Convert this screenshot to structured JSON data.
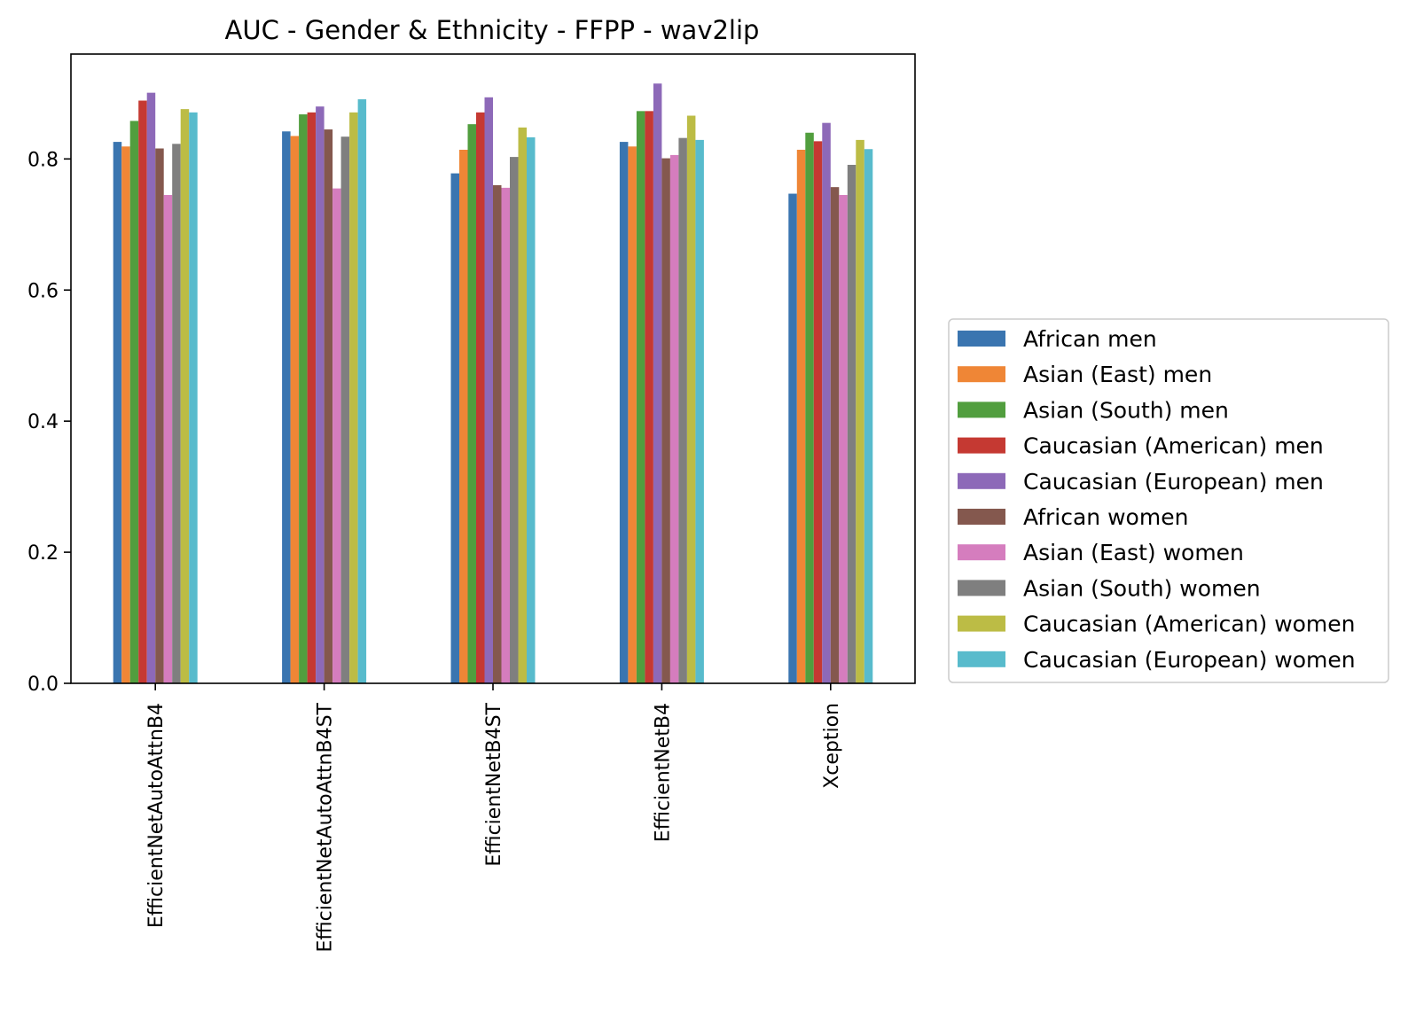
{
  "chart_data": {
    "type": "bar",
    "title": "AUC - Gender & Ethnicity - FFPP - wav2lip",
    "xlabel": "",
    "ylabel": "",
    "ylim": [
      0,
      0.96
    ],
    "yticks": [
      {
        "value": 0.0,
        "label": "0.0"
      },
      {
        "value": 0.2,
        "label": "0.2"
      },
      {
        "value": 0.4,
        "label": "0.4"
      },
      {
        "value": 0.6,
        "label": "0.6"
      },
      {
        "value": 0.8,
        "label": "0.8"
      }
    ],
    "grid": false,
    "legend_position": "right",
    "categories": [
      "EfficientNetAutoAttnB4",
      "EfficientNetAutoAttnB4ST",
      "EfficientNetB4ST",
      "EfficientNetB4",
      "Xception"
    ],
    "series": [
      {
        "name": "African men",
        "color": "#3a75b0",
        "values": [
          0.826,
          0.842,
          0.778,
          0.826,
          0.747
        ]
      },
      {
        "name": "Asian (East) men",
        "color": "#ef8636",
        "values": [
          0.819,
          0.835,
          0.814,
          0.819,
          0.814
        ]
      },
      {
        "name": "Asian (South) men",
        "color": "#519e3e",
        "values": [
          0.858,
          0.868,
          0.853,
          0.873,
          0.84
        ]
      },
      {
        "name": "Caucasian (American) men",
        "color": "#c53932",
        "values": [
          0.889,
          0.871,
          0.871,
          0.873,
          0.827
        ]
      },
      {
        "name": "Caucasian (European) men",
        "color": "#8d69b8",
        "values": [
          0.901,
          0.88,
          0.894,
          0.915,
          0.855
        ]
      },
      {
        "name": "African women",
        "color": "#84584e",
        "values": [
          0.816,
          0.845,
          0.76,
          0.801,
          0.757
        ]
      },
      {
        "name": "Asian (East) women",
        "color": "#d57dbe",
        "values": [
          0.745,
          0.755,
          0.756,
          0.806,
          0.745
        ]
      },
      {
        "name": "Asian (South) women",
        "color": "#7f7f7f",
        "values": [
          0.823,
          0.834,
          0.803,
          0.832,
          0.791
        ]
      },
      {
        "name": "Caucasian (American) women",
        "color": "#bcbc45",
        "values": [
          0.876,
          0.871,
          0.848,
          0.866,
          0.829
        ]
      },
      {
        "name": "Caucasian (European) women",
        "color": "#58bbcc",
        "values": [
          0.871,
          0.891,
          0.833,
          0.829,
          0.815
        ]
      }
    ]
  }
}
